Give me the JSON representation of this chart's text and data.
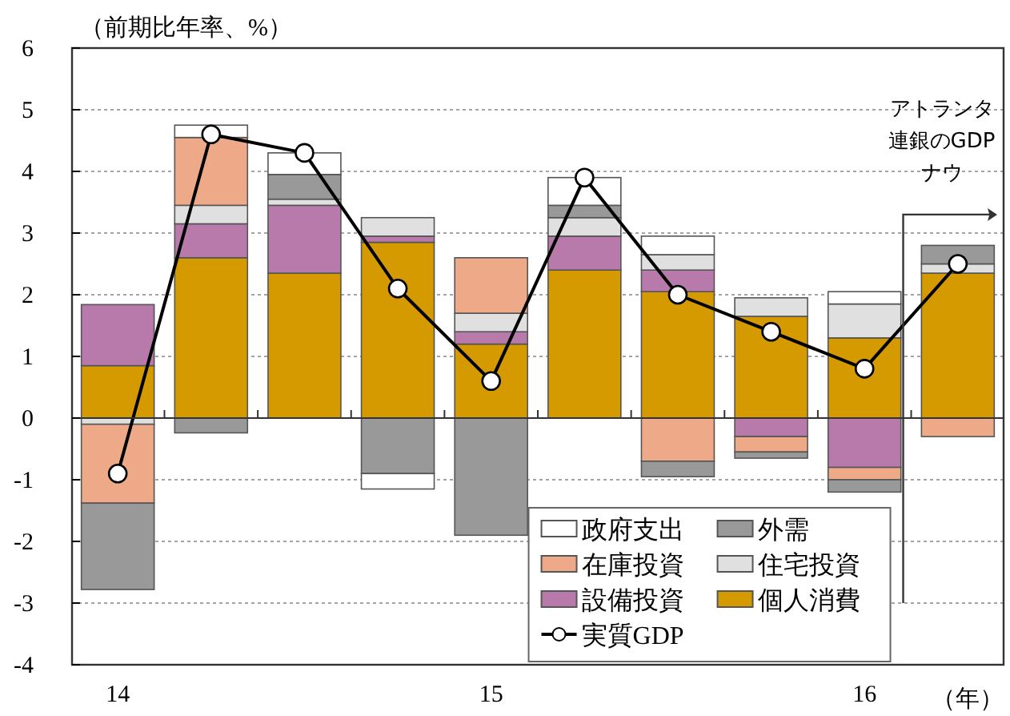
{
  "chart_data": {
    "type": "bar",
    "stacked": true,
    "ylabel": "（前期比年率、%）",
    "xlabel": "（年）",
    "categories": [
      "14",
      null,
      null,
      null,
      "15",
      null,
      null,
      null,
      "16",
      null
    ],
    "ylim": [
      -4,
      6
    ],
    "yticks": [
      -4,
      -3,
      -2,
      -1,
      0,
      1,
      2,
      3,
      4,
      5,
      6
    ],
    "grid": "y",
    "legend": "bottom right",
    "series": [
      {
        "name": "個人消費",
        "color": "#d49a00",
        "values": [
          0.85,
          2.6,
          2.35,
          2.85,
          1.2,
          2.4,
          2.05,
          1.65,
          1.3,
          2.35
        ]
      },
      {
        "name": "設備投資",
        "color": "#b77aab",
        "values": [
          0.99,
          0.55,
          1.1,
          0.1,
          0.2,
          0.55,
          0.35,
          -0.3,
          -0.8,
          null
        ]
      },
      {
        "name": "住宅投資",
        "color": "#e0e0e0",
        "values": [
          -0.1,
          0.3,
          0.1,
          0.3,
          0.3,
          0.3,
          0.25,
          0.3,
          0.55,
          0.15
        ]
      },
      {
        "name": "在庫投資",
        "color": "#eeaa88",
        "values": [
          -1.28,
          1.1,
          null,
          null,
          0.9,
          null,
          -0.7,
          -0.25,
          -0.2,
          -0.3
        ]
      },
      {
        "name": "外需",
        "color": "#999999",
        "values": [
          -1.4,
          -0.24,
          0.4,
          -0.9,
          -1.9,
          0.2,
          -0.25,
          -0.1,
          -0.2,
          0.3
        ]
      },
      {
        "name": "政府支出",
        "color": "#ffffff",
        "values": [
          null,
          0.2,
          0.35,
          -0.25,
          null,
          0.45,
          0.3,
          null,
          0.2,
          null
        ]
      },
      {
        "name": "実質GDP",
        "type": "line",
        "color": "#000000",
        "marker": "circle",
        "values": [
          -0.9,
          4.6,
          4.3,
          2.1,
          0.6,
          3.9,
          2.0,
          1.4,
          0.8,
          2.5
        ]
      }
    ],
    "annotations": [
      "アトランタ連銀のGDPナウ"
    ]
  }
}
